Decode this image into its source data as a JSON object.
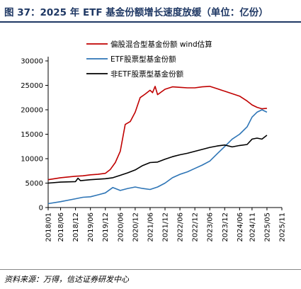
{
  "title": "图 37：2025 年 ETF 基金份额增长速度放缓（单位：亿份）",
  "source": "资料来源：万得，信达证券研发中心",
  "chart_data": {
    "type": "line",
    "title": "图 37：2025 年 ETF 基金份额增长速度放缓（单位：亿份）",
    "ylim": [
      0,
      30000
    ],
    "yticks": [
      "0",
      "5000",
      "10000",
      "15000",
      "20000",
      "25000",
      "30000"
    ],
    "xticks": [
      "2018/01",
      "2018/06",
      "2018/12",
      "2019/06",
      "2019/12",
      "2020/06",
      "2020/12",
      "2021/06",
      "2021/12",
      "2022/06",
      "2022/12",
      "2023/06",
      "2023/12",
      "2024/06",
      "2024/11",
      "2025/05",
      "2025/11"
    ],
    "grid": false,
    "legend_position": "top",
    "series": [
      {
        "name": "偏股混合型基金份额 wind估算",
        "color": "#c00000",
        "points": [
          [
            "2018/01",
            5700
          ],
          [
            "2018/06",
            6100
          ],
          [
            "2018/12",
            6400
          ],
          [
            "2019/03",
            6500
          ],
          [
            "2019/06",
            6700
          ],
          [
            "2019/09",
            6800
          ],
          [
            "2019/12",
            7000
          ],
          [
            "2020/02",
            7800
          ],
          [
            "2020/04",
            9200
          ],
          [
            "2020/06",
            11500
          ],
          [
            "2020/08",
            17000
          ],
          [
            "2020/10",
            17600
          ],
          [
            "2020/12",
            19500
          ],
          [
            "2021/02",
            22500
          ],
          [
            "2021/04",
            23200
          ],
          [
            "2021/06",
            24000
          ],
          [
            "2021/07",
            23500
          ],
          [
            "2021/08",
            24800
          ],
          [
            "2021/09",
            23100
          ],
          [
            "2021/12",
            24200
          ],
          [
            "2022/03",
            24700
          ],
          [
            "2022/06",
            24600
          ],
          [
            "2022/09",
            24500
          ],
          [
            "2022/12",
            24500
          ],
          [
            "2023/03",
            24700
          ],
          [
            "2023/06",
            24800
          ],
          [
            "2023/09",
            24300
          ],
          [
            "2023/12",
            23800
          ],
          [
            "2024/03",
            23300
          ],
          [
            "2024/06",
            22800
          ],
          [
            "2024/09",
            21800
          ],
          [
            "2024/11",
            21000
          ],
          [
            "2025/01",
            20500
          ],
          [
            "2025/03",
            20200
          ],
          [
            "2025/05",
            20300
          ]
        ]
      },
      {
        "name": "ETF股票型基金份额",
        "color": "#2e75b6",
        "points": [
          [
            "2018/01",
            800
          ],
          [
            "2018/06",
            1200
          ],
          [
            "2018/12",
            1800
          ],
          [
            "2019/03",
            2100
          ],
          [
            "2019/06",
            2200
          ],
          [
            "2019/09",
            2600
          ],
          [
            "2019/12",
            3000
          ],
          [
            "2020/03",
            4100
          ],
          [
            "2020/06",
            3500
          ],
          [
            "2020/09",
            3900
          ],
          [
            "2020/12",
            4200
          ],
          [
            "2021/03",
            3900
          ],
          [
            "2021/06",
            3700
          ],
          [
            "2021/09",
            4200
          ],
          [
            "2021/12",
            5000
          ],
          [
            "2022/03",
            6100
          ],
          [
            "2022/06",
            6800
          ],
          [
            "2022/09",
            7300
          ],
          [
            "2022/12",
            8000
          ],
          [
            "2023/03",
            8700
          ],
          [
            "2023/06",
            9500
          ],
          [
            "2023/09",
            11000
          ],
          [
            "2023/12",
            12500
          ],
          [
            "2024/03",
            14000
          ],
          [
            "2024/06",
            15000
          ],
          [
            "2024/09",
            16500
          ],
          [
            "2024/11",
            18500
          ],
          [
            "2025/01",
            19500
          ],
          [
            "2025/03",
            20000
          ],
          [
            "2025/05",
            19500
          ]
        ]
      },
      {
        "name": "非ETF股票型基金份额",
        "color": "#000000",
        "points": [
          [
            "2018/01",
            5000
          ],
          [
            "2018/06",
            5200
          ],
          [
            "2018/12",
            5300
          ],
          [
            "2019/01",
            6000
          ],
          [
            "2019/02",
            5500
          ],
          [
            "2019/06",
            5700
          ],
          [
            "2019/12",
            5900
          ],
          [
            "2020/03",
            6100
          ],
          [
            "2020/06",
            6600
          ],
          [
            "2020/09",
            7100
          ],
          [
            "2020/12",
            7700
          ],
          [
            "2021/03",
            8600
          ],
          [
            "2021/06",
            9200
          ],
          [
            "2021/09",
            9300
          ],
          [
            "2021/12",
            9900
          ],
          [
            "2022/03",
            10400
          ],
          [
            "2022/06",
            10800
          ],
          [
            "2022/09",
            11100
          ],
          [
            "2022/12",
            11500
          ],
          [
            "2023/03",
            11900
          ],
          [
            "2023/06",
            12300
          ],
          [
            "2023/09",
            12600
          ],
          [
            "2023/12",
            12800
          ],
          [
            "2024/03",
            12400
          ],
          [
            "2024/06",
            12700
          ],
          [
            "2024/09",
            12900
          ],
          [
            "2024/11",
            14000
          ],
          [
            "2025/01",
            14200
          ],
          [
            "2025/03",
            14000
          ],
          [
            "2025/05",
            14800
          ]
        ]
      }
    ]
  }
}
